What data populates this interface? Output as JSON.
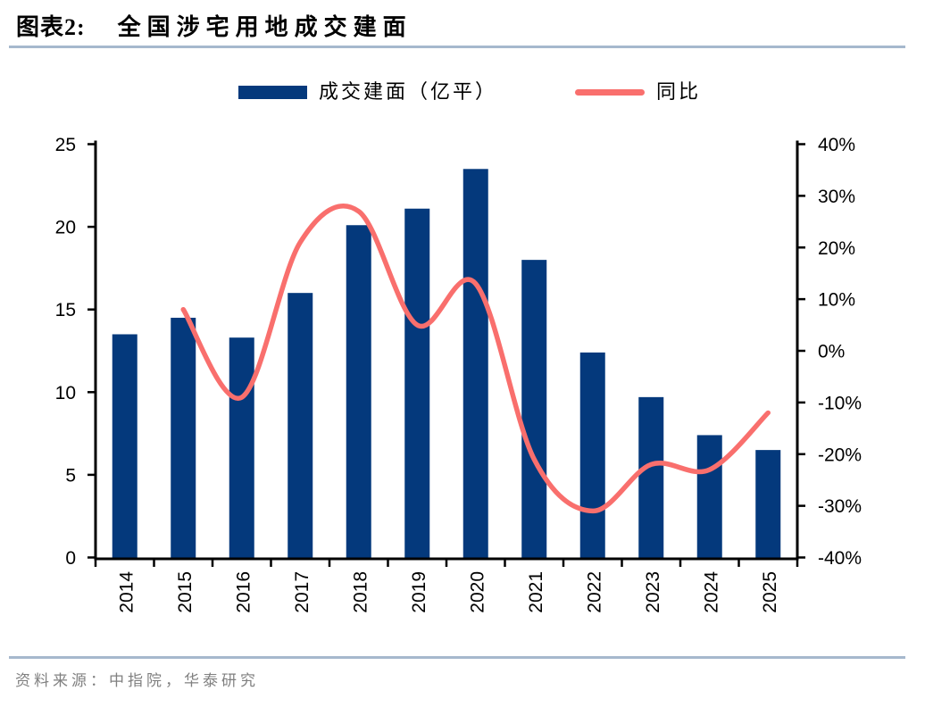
{
  "header": {
    "figure_label": "图表2:",
    "title": "全国涉宅用地成交建面"
  },
  "legend": {
    "bar_label": "成交建面（亿平）",
    "line_label": "同比"
  },
  "footer": {
    "source": "资料来源：中指院，华泰研究"
  },
  "colors": {
    "accent_rule": "#A6B8CD",
    "source_text": "#808080",
    "axis": "#000000"
  },
  "chart_data": {
    "type": "bar",
    "combo": "bar+line-dual-axis",
    "title": "全国涉宅用地成交建面",
    "grid": false,
    "legend_position": "top",
    "categories": [
      "2014",
      "2015",
      "2016",
      "2017",
      "2018",
      "2019",
      "2020",
      "2021",
      "2022",
      "2023",
      "2024",
      "2025"
    ],
    "series": [
      {
        "name": "成交建面（亿平）",
        "type": "bar",
        "axis": "left",
        "color": "#04397C",
        "values": [
          13.5,
          14.5,
          13.3,
          16.0,
          20.1,
          21.1,
          23.5,
          18.0,
          12.4,
          9.7,
          7.4,
          6.5
        ]
      },
      {
        "name": "同比",
        "type": "line",
        "axis": "right",
        "unit": "%",
        "color": "#F96F6D",
        "smooth": true,
        "values": [
          null,
          8,
          -9,
          21,
          27,
          5,
          13,
          -21,
          -31,
          -22,
          -23,
          -12
        ]
      }
    ],
    "left_axis": {
      "min": 0,
      "max": 25,
      "step": 5,
      "tick_labels": [
        "0",
        "5",
        "10",
        "15",
        "20",
        "25"
      ]
    },
    "right_axis": {
      "min": -40,
      "max": 40,
      "step": 10,
      "tick_labels": [
        "40%",
        "30%",
        "20%",
        "10%",
        "0%",
        "-10%",
        "-20%",
        "-30%",
        "-40%"
      ]
    }
  }
}
